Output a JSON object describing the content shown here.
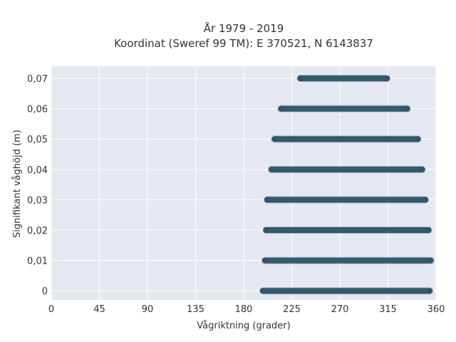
{
  "chart_data": {
    "type": "scatter",
    "title_line1": "År 1979 - 2019",
    "title_line2": "Koordinat (Sweref 99 TM): E 370521, N 6143837",
    "xlabel": "Vågriktning (grader)",
    "ylabel": "Signifikant våghöjd (m)",
    "xlim": [
      0,
      360
    ],
    "ylim": [
      -0.003,
      0.074
    ],
    "x_ticks": [
      0,
      45,
      90,
      135,
      180,
      225,
      270,
      315,
      360
    ],
    "x_tick_labels": [
      "0",
      "45",
      "90",
      "135",
      "180",
      "225",
      "270",
      "315",
      "360"
    ],
    "y_ticks": [
      0,
      0.01,
      0.02,
      0.03,
      0.04,
      0.05,
      0.06,
      0.07
    ],
    "y_tick_labels": [
      "0",
      "0,01",
      "0,02",
      "0,03",
      "0,04",
      "0,05",
      "0,06",
      "0,07"
    ],
    "grid": true,
    "marker_color": "#2f5468",
    "plot_background": "#e5e8f0",
    "bands": [
      {
        "y": 0.0,
        "x_min": 198,
        "x_max": 354
      },
      {
        "y": 0.01,
        "x_min": 200,
        "x_max": 355
      },
      {
        "y": 0.02,
        "x_min": 201,
        "x_max": 353
      },
      {
        "y": 0.03,
        "x_min": 202,
        "x_max": 350
      },
      {
        "y": 0.04,
        "x_min": 206,
        "x_max": 347
      },
      {
        "y": 0.05,
        "x_min": 209,
        "x_max": 343
      },
      {
        "y": 0.06,
        "x_min": 215,
        "x_max": 333
      },
      {
        "y": 0.07,
        "x_min": 233,
        "x_max": 314
      }
    ]
  }
}
